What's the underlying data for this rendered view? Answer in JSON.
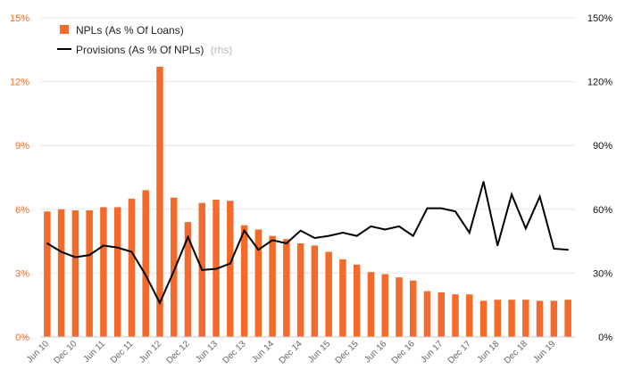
{
  "chart_data": {
    "type": "bar",
    "categories": [
      "Jun 10",
      "Sep 10",
      "Dec 10",
      "Mar 11",
      "Jun 11",
      "Sep 11",
      "Dec 11",
      "Mar 12",
      "Jun 12",
      "Sep 12",
      "Dec 12",
      "Mar 13",
      "Jun 13",
      "Sep 13",
      "Dec 13",
      "Mar 14",
      "Jun 14",
      "Sep 14",
      "Dec 14",
      "Mar 15",
      "Jun 15",
      "Sep 15",
      "Dec 15",
      "Mar 16",
      "Jun 16",
      "Sep 16",
      "Dec 16",
      "Mar 17",
      "Jun 17",
      "Sep 17",
      "Dec 17",
      "Mar 18",
      "Jun 18",
      "Sep 18",
      "Dec 18",
      "Mar 19",
      "Jun 19",
      "Sep 19"
    ],
    "x_tick_labels": [
      "Jun 10",
      "Dec 10",
      "Jun 11",
      "Dec 11",
      "Jun 12",
      "Dec 12",
      "Jun 13",
      "Dec 13",
      "Jun 14",
      "Dec 14",
      "Jun 15",
      "Dec 15",
      "Jun 16",
      "Dec 16",
      "Jun 17",
      "Dec 17",
      "Jun 18",
      "Dec 18",
      "Jun 19"
    ],
    "series": [
      {
        "name": "NPLs (As % Of Loans)",
        "type": "bar",
        "axis": "left",
        "color": "#f26b2a",
        "values": [
          5.9,
          6.0,
          5.95,
          5.95,
          6.1,
          6.1,
          6.5,
          6.9,
          12.7,
          6.55,
          5.4,
          6.3,
          6.45,
          6.4,
          5.25,
          5.05,
          4.75,
          4.6,
          4.4,
          4.3,
          4.0,
          3.65,
          3.4,
          3.05,
          2.95,
          2.8,
          2.65,
          2.15,
          2.1,
          2.0,
          2.0,
          1.7,
          1.75,
          1.75,
          1.75,
          1.7,
          1.7,
          1.75
        ]
      },
      {
        "name": "Provisions (As % Of NPLs)",
        "type": "line",
        "axis": "right",
        "color": "#000000",
        "values": [
          44,
          40,
          37.5,
          38.5,
          43,
          42,
          40,
          29,
          16,
          31,
          47,
          31.5,
          32,
          34.5,
          50,
          41,
          45.5,
          44,
          50,
          46.5,
          47.5,
          49,
          47.5,
          52,
          50.5,
          52,
          47.5,
          60.5,
          60.5,
          59,
          49,
          73,
          43,
          67,
          51,
          66,
          41.5,
          41
        ]
      }
    ],
    "y_left": {
      "ylim": [
        0,
        15
      ],
      "tick_labels": [
        "0%",
        "3%",
        "6%",
        "9%",
        "12%",
        "15%"
      ],
      "tick_values": [
        0,
        3,
        6,
        9,
        12,
        15
      ],
      "color": "#f26b2a"
    },
    "y_right": {
      "ylim": [
        0,
        150
      ],
      "tick_labels": [
        "0%",
        "30%",
        "60%",
        "90%",
        "120%",
        "150%"
      ],
      "tick_values": [
        0,
        30,
        60,
        90,
        120,
        150
      ],
      "color": "#111111"
    },
    "legend": {
      "placement": "top-left",
      "bar_label": "NPLs (As % Of Loans)",
      "line_label": "Provisions (As % Of NPLs)",
      "line_hint": "(rhs)"
    },
    "grid": true,
    "grid_color": "#e6e6e6"
  }
}
